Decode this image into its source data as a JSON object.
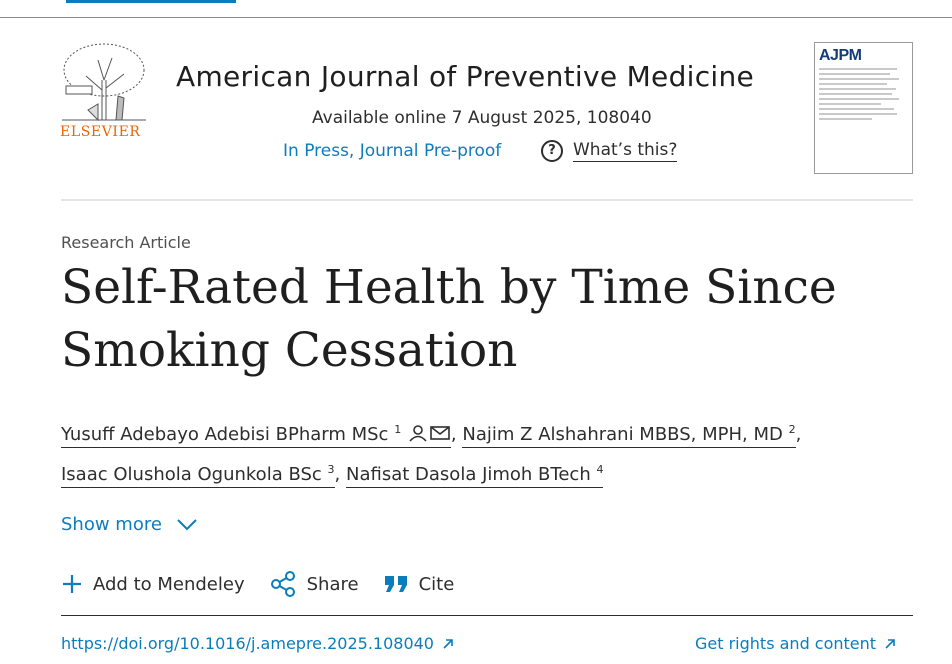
{
  "publisher": {
    "name": "ELSEVIER"
  },
  "journal": {
    "title": "American Journal of Preventive Medicine",
    "available": "Available online 7 August 2025, 108040",
    "status": "In Press, Journal Pre-proof",
    "whats_this": "What’s this?",
    "cover_title": "AJPM"
  },
  "article": {
    "type": "Research Article",
    "title": "Self-Rated Health by Time Since Smoking Cessation"
  },
  "authors": [
    {
      "name": "Yusuff Adebayo Adebisi BPharm MSc",
      "sup": "1"
    },
    {
      "name": "Najim Z Alshahrani MBBS, MPH, MD",
      "sup": "2"
    },
    {
      "name": "Isaac Olushola Ogunkola BSc",
      "sup": "3"
    },
    {
      "name": "Nafisat Dasola Jimoh BTech",
      "sup": "4"
    }
  ],
  "separators": {
    "comma": ","
  },
  "show_more": "Show more",
  "actions": {
    "mendeley": "Add to Mendeley",
    "share": "Share",
    "cite": "Cite"
  },
  "links": {
    "doi": "https://doi.org/10.1016/j.amepre.2025.108040",
    "rights": "Get rights and content"
  },
  "colors": {
    "link": "#0c7dbb",
    "brand": "#eb6500",
    "text": "#2e2e2e"
  }
}
